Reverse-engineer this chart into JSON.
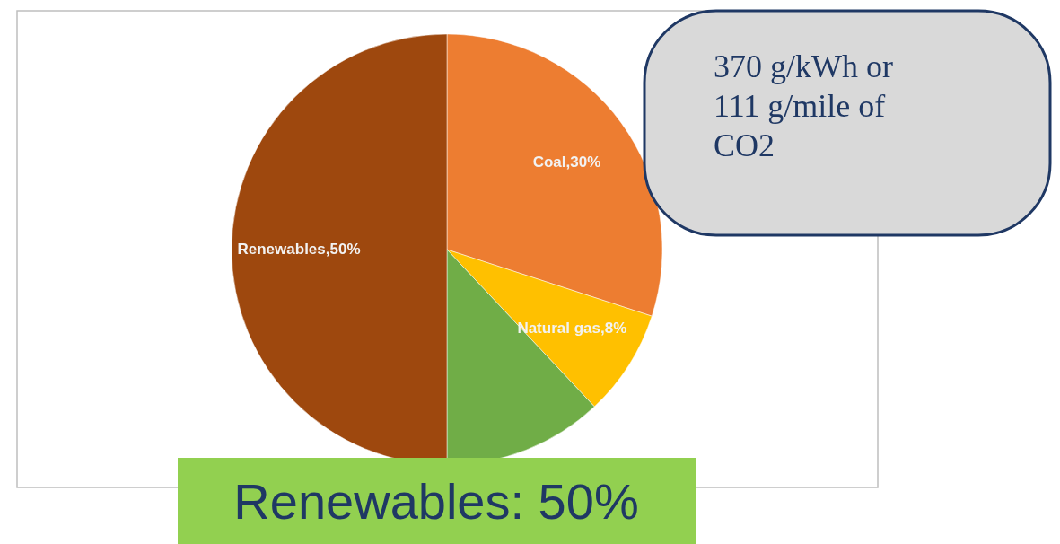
{
  "chart_data": {
    "type": "pie",
    "categories": [
      "Coal",
      "Natural gas",
      null,
      "Renewables"
    ],
    "values": [
      30,
      8,
      12,
      50
    ],
    "colors": [
      "#ed7d31",
      "#ffc000",
      "#70ad47",
      "#9e480e"
    ],
    "value_labels": [
      "30%",
      "8%",
      null,
      "50%"
    ],
    "annotations": [
      "370 g/kWh or\n111 g/mile of\nCO2",
      "Renewables: 50%"
    ]
  }
}
